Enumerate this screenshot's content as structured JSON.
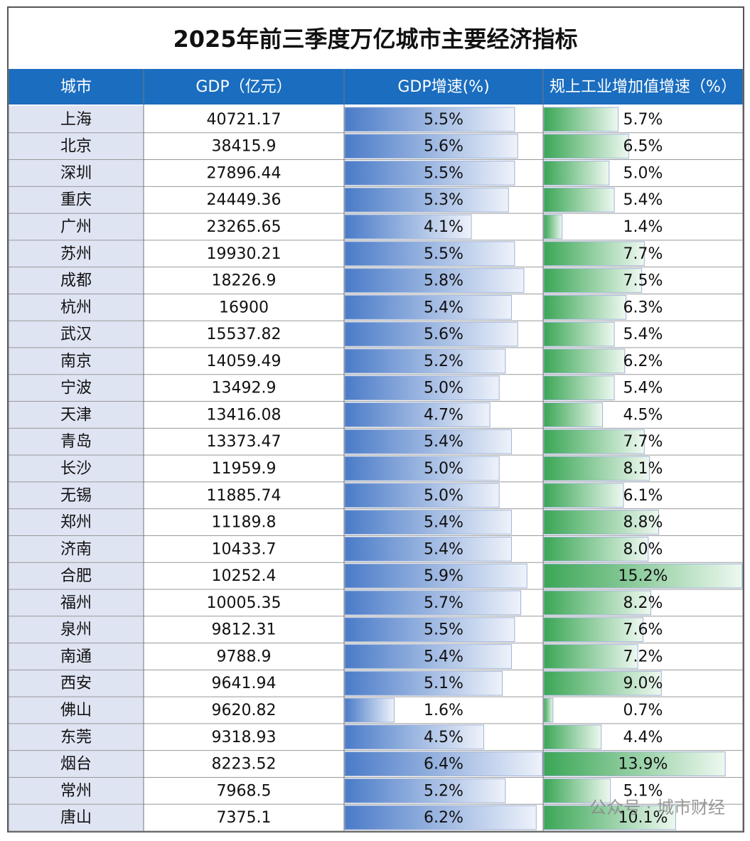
{
  "title": "2025年前三季度万亿城市主要经济指标",
  "table": {
    "headers": [
      "城市",
      "GDP（亿元）",
      "GDP增速(%)",
      "规上工业增加值增速（%）"
    ],
    "cities": [
      "上海",
      "北京",
      "深圳",
      "重庆",
      "广州",
      "苏州",
      "成都",
      "杭州",
      "武汉",
      "南京",
      "宁波",
      "天津",
      "青岛",
      "长沙",
      "无锡",
      "郑州",
      "济南",
      "合肥",
      "福州",
      "泉州",
      "南通",
      "西安",
      "佛山",
      "东莞",
      "烟台",
      "常州",
      "唐山"
    ],
    "gdp": [
      40721.17,
      38415.9,
      27896.44,
      24449.36,
      23265.65,
      19930.21,
      18226.9,
      16900,
      15537.82,
      14059.49,
      13492.9,
      13416.08,
      13373.47,
      11959.9,
      11885.74,
      11189.8,
      10433.7,
      10252.4,
      10005.35,
      9812.31,
      9788.9,
      9641.94,
      9620.82,
      9318.93,
      8223.52,
      7968.5,
      7375.1
    ],
    "gdp_growth": {
      "values": [
        5.5,
        5.6,
        5.5,
        5.3,
        4.1,
        5.5,
        5.8,
        5.4,
        5.6,
        5.2,
        5.0,
        4.7,
        5.4,
        5.0,
        5.0,
        5.4,
        5.4,
        5.9,
        5.7,
        5.5,
        5.4,
        5.1,
        1.6,
        4.5,
        6.4,
        5.2,
        6.2
      ],
      "value_labels": [
        "5.5%",
        "5.6%",
        "5.5%",
        "5.3%",
        "4.1%",
        "5.5%",
        "5.8%",
        "5.4%",
        "5.6%",
        "5.2%",
        "5.0%",
        "4.7%",
        "5.4%",
        "5.0%",
        "5.0%",
        "5.4%",
        "5.4%",
        "5.9%",
        "5.7%",
        "5.5%",
        "5.4%",
        "5.1%",
        "1.6%",
        "4.5%",
        "6.4%",
        "5.2%",
        "6.2%"
      ],
      "color": "#4a7bc8"
    },
    "industry_growth": {
      "values": [
        5.7,
        6.5,
        5.0,
        5.4,
        1.4,
        7.7,
        7.5,
        6.3,
        5.4,
        6.2,
        5.4,
        4.5,
        7.7,
        8.1,
        6.1,
        8.8,
        8.0,
        15.2,
        8.2,
        7.6,
        7.2,
        9.0,
        0.7,
        4.4,
        13.9,
        5.1,
        10.1
      ],
      "value_labels": [
        "5.7%",
        "6.5%",
        "5.0%",
        "5.4%",
        "1.4%",
        "7.7%",
        "7.5%",
        "6.3%",
        "5.4%",
        "6.2%",
        "5.4%",
        "4.5%",
        "7.7%",
        "8.1%",
        "6.1%",
        "8.8%",
        "8.0%",
        "15.2%",
        "8.2%",
        "7.6%",
        "7.2%",
        "9.0%",
        "0.7%",
        "4.4%",
        "13.9%",
        "5.1%",
        "10.1%"
      ],
      "color": "#3aa655"
    }
  },
  "watermark": "公众号 · 城市财经"
}
